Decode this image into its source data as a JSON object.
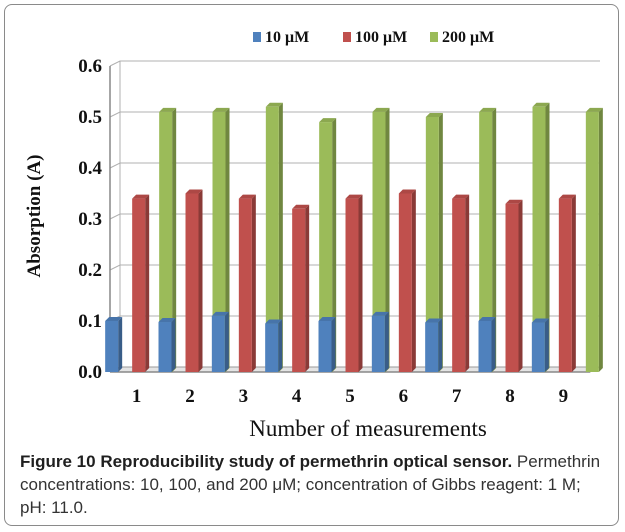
{
  "caption": {
    "label": "Figure 10",
    "heading": "Reproducibility study of permethrin optical sensor.",
    "body": "Permethrin concentrations: 10, 100, and 200 μM; concentration of Gibbs reagent: 1 M; pH: 11.0."
  },
  "chart_data": {
    "type": "bar",
    "xlabel": "Number of measurements",
    "ylabel": "Absorption (A)",
    "categories": [
      "1",
      "2",
      "3",
      "4",
      "5",
      "6",
      "7",
      "8",
      "9"
    ],
    "ylim": [
      0,
      0.6
    ],
    "yticks": [
      "0.0",
      "0.1",
      "0.2",
      "0.3",
      "0.4",
      "0.5",
      "0.6"
    ],
    "grid": true,
    "legend_position": "top-center",
    "series": [
      {
        "name": "10 μM",
        "color": "#4f81bd",
        "values": [
          0.1,
          0.098,
          0.11,
          0.095,
          0.1,
          0.11,
          0.097,
          0.1,
          0.097
        ]
      },
      {
        "name": "100 μM",
        "color": "#c0504d",
        "values": [
          0.34,
          0.35,
          0.34,
          0.32,
          0.34,
          0.35,
          0.34,
          0.33,
          0.34
        ]
      },
      {
        "name": "200 μM",
        "color": "#9bbb59",
        "values": [
          0.51,
          0.51,
          0.52,
          0.49,
          0.51,
          0.5,
          0.51,
          0.52,
          0.51
        ]
      }
    ]
  }
}
